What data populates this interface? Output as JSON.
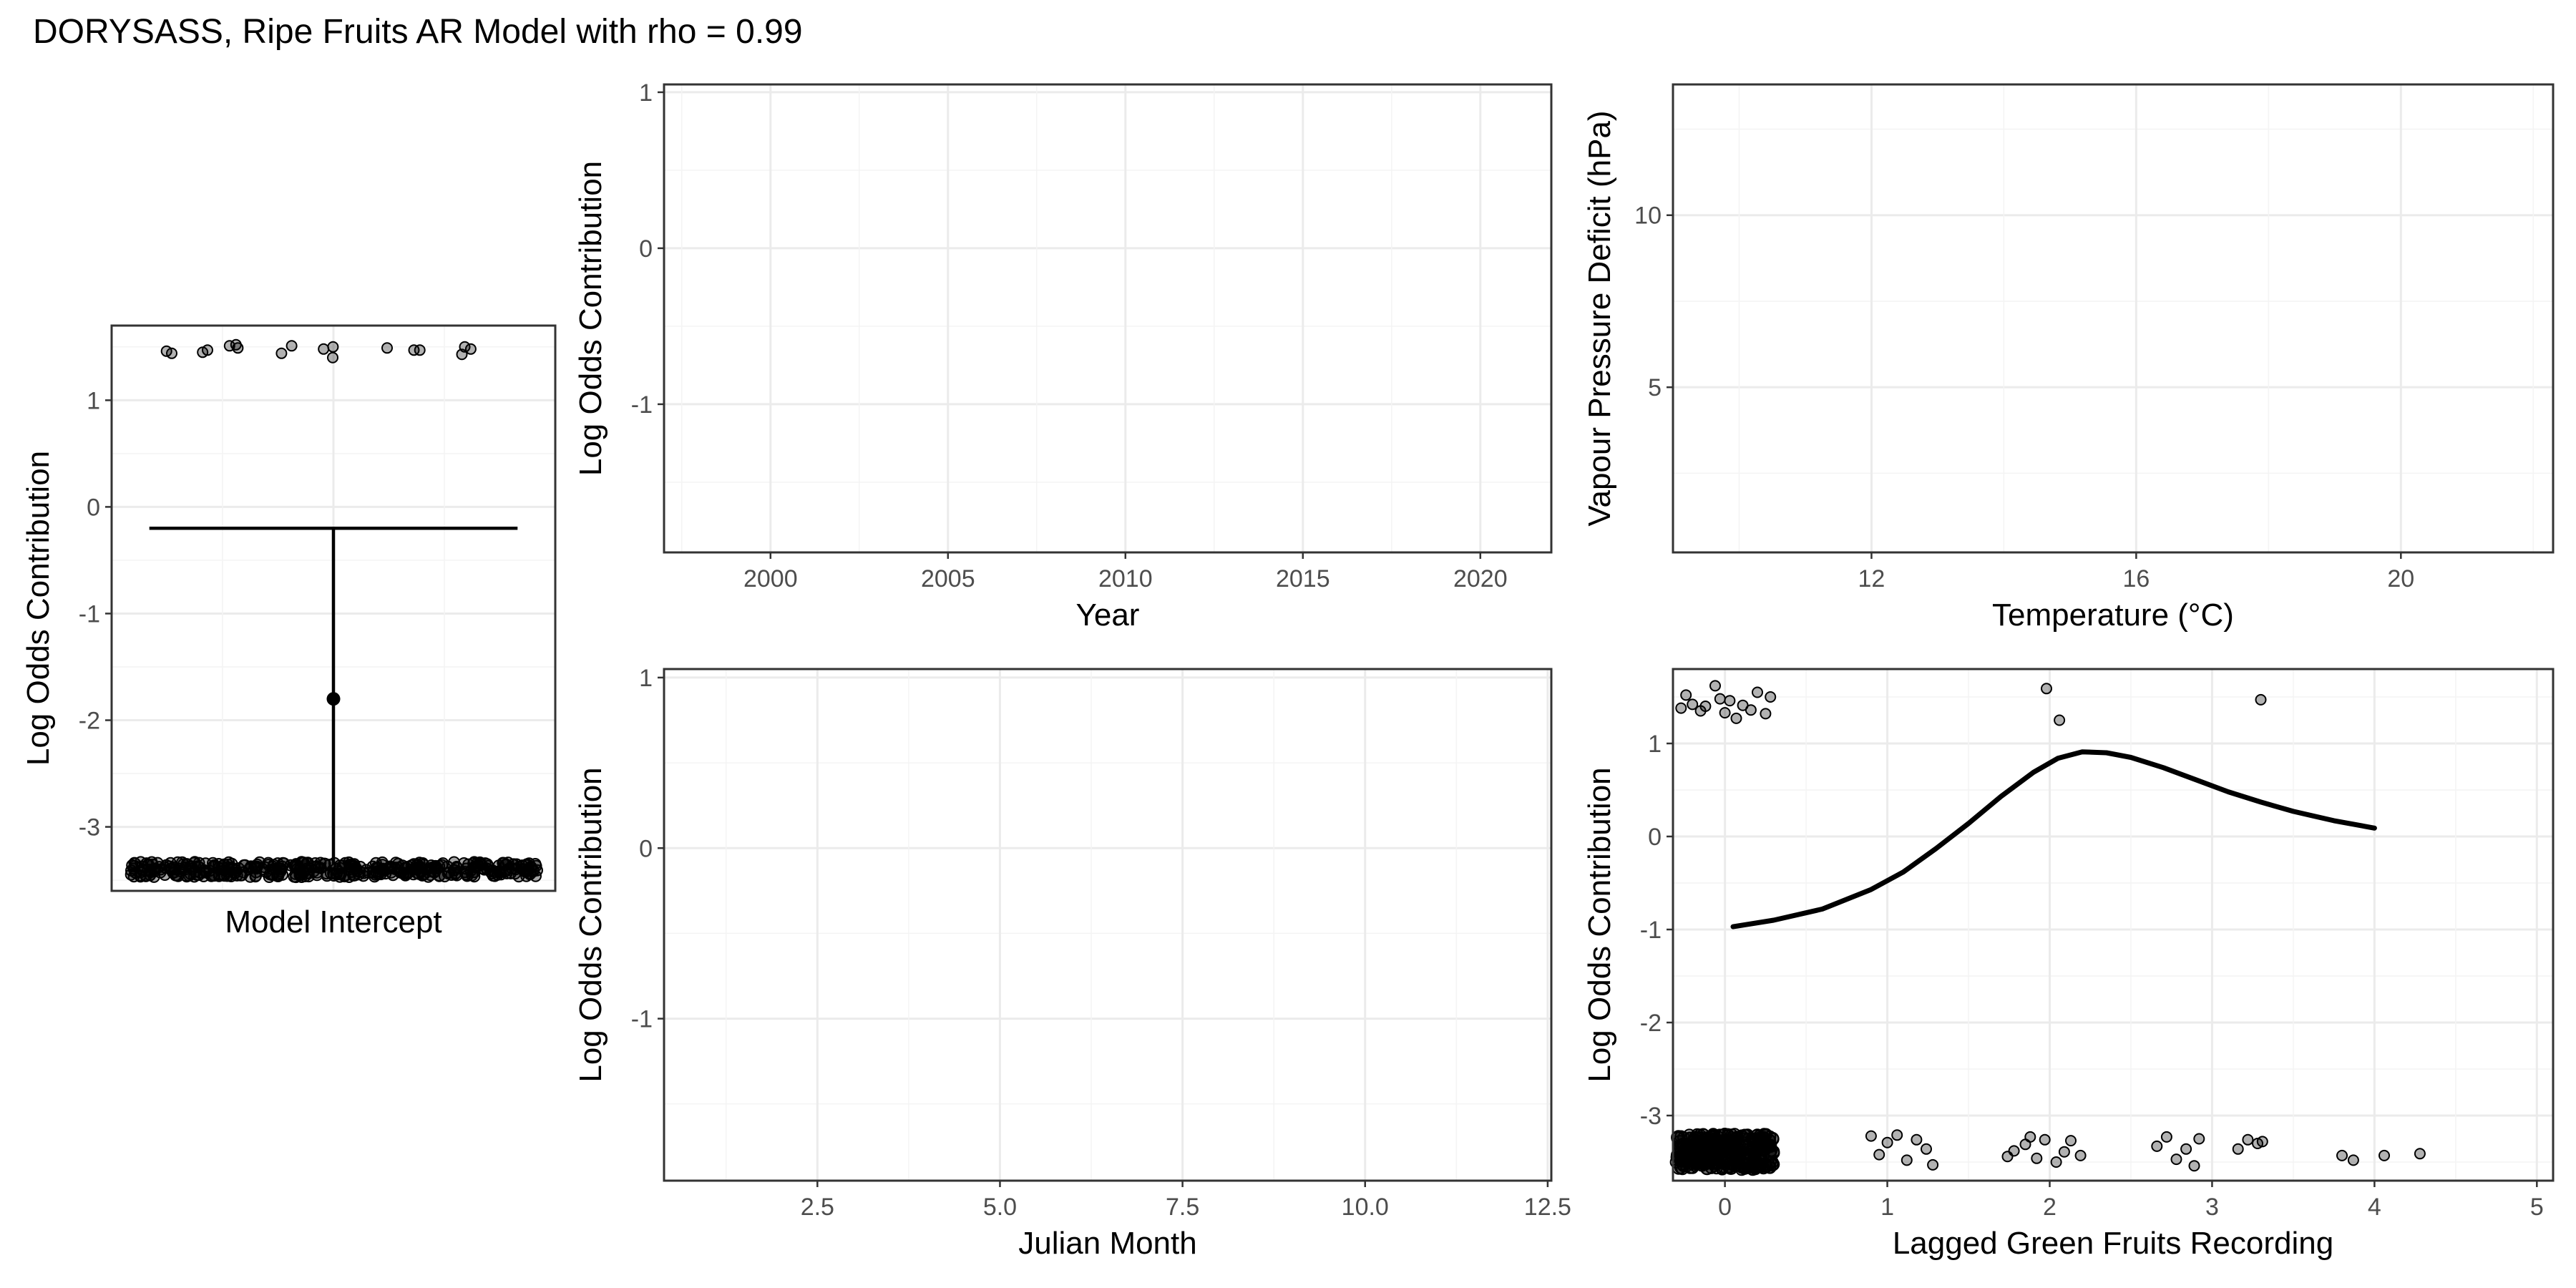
{
  "figure_title": "DORYSASS, Ripe Fruits AR Model with rho = 0.99",
  "colors": {
    "ink": "#000000",
    "grid": "#ebebeb",
    "border": "#333333",
    "tick_text": "#4d4d4d"
  },
  "chart_data": [
    {
      "id": "intercept",
      "type": "scatter",
      "xlabel": "Model Intercept",
      "ylabel": "Log Odds Contribution",
      "ylim": [
        -3.6,
        1.7
      ],
      "yticks": [
        1,
        0,
        -1,
        -2,
        -3
      ],
      "xticks": [],
      "grid": true,
      "estimate": {
        "y": -1.8,
        "lower": -3.35,
        "upper": -0.2,
        "cap_at": "upper"
      },
      "points_top_y": [
        1.52,
        1.47,
        1.49,
        1.5,
        1.47,
        1.44,
        1.5,
        1.51,
        1.46,
        1.48,
        1.44,
        1.47,
        1.4,
        1.49,
        1.45,
        1.43,
        1.48,
        1.51
      ],
      "points_bottom_band": [
        -3.47,
        -3.33
      ]
    },
    {
      "id": "year",
      "type": "line",
      "xlabel": "Year",
      "ylabel": "Log Odds Contribution",
      "xlim": [
        1997,
        2022
      ],
      "ylim": [
        -1.95,
        1.05
      ],
      "xticks": [
        2000,
        2005,
        2010,
        2015,
        2020
      ],
      "yticks": [
        1,
        0,
        -1
      ],
      "grid": true,
      "series": []
    },
    {
      "id": "temperature",
      "type": "line",
      "xlabel": "Temperature (°C)",
      "ylabel": "Vapour Pressure Deficit (hPa)",
      "xlim": [
        9,
        22.3
      ],
      "ylim": [
        0.2,
        13.8
      ],
      "xticks": [
        12,
        16,
        20
      ],
      "yticks": [
        10,
        5
      ],
      "grid": true,
      "series": []
    },
    {
      "id": "julian",
      "type": "line",
      "xlabel": "Julian Month",
      "ylabel": "Log Odds Contribution",
      "xlim": [
        0.4,
        12.55
      ],
      "ylim": [
        -1.95,
        1.05
      ],
      "xticks": [
        "2.5",
        "5.0",
        "7.5",
        "10.0",
        "12.5"
      ],
      "yticks": [
        1,
        0,
        -1
      ],
      "grid": true,
      "series": []
    },
    {
      "id": "lagged",
      "type": "scatter",
      "xlabel": "Lagged Green Fruits Recording",
      "ylabel": "Log Odds Contribution",
      "xlim": [
        -0.32,
        5.1
      ],
      "ylim": [
        -3.7,
        1.8
      ],
      "xticks": [
        0,
        1,
        2,
        3,
        4,
        5
      ],
      "yticks": [
        1,
        0,
        -1,
        -2,
        -3
      ],
      "grid": true,
      "curve": {
        "x": [
          0.05,
          0.3,
          0.6,
          0.9,
          1.1,
          1.3,
          1.5,
          1.7,
          1.9,
          2.05,
          2.2,
          2.35,
          2.5,
          2.7,
          2.9,
          3.1,
          3.3,
          3.5,
          3.75,
          4.0
        ],
        "y": [
          -0.97,
          -0.9,
          -0.78,
          -0.57,
          -0.38,
          -0.13,
          0.14,
          0.43,
          0.69,
          0.84,
          0.91,
          0.9,
          0.85,
          0.74,
          0.61,
          0.48,
          0.37,
          0.27,
          0.17,
          0.09
        ]
      },
      "points_top": [
        [
          -0.27,
          1.38
        ],
        [
          -0.24,
          1.52
        ],
        [
          -0.2,
          1.42
        ],
        [
          -0.15,
          1.35
        ],
        [
          -0.12,
          1.4
        ],
        [
          -0.06,
          1.62
        ],
        [
          -0.03,
          1.48
        ],
        [
          0.0,
          1.33
        ],
        [
          0.03,
          1.46
        ],
        [
          0.07,
          1.27
        ],
        [
          0.11,
          1.41
        ],
        [
          0.16,
          1.36
        ],
        [
          0.2,
          1.55
        ],
        [
          0.25,
          1.32
        ],
        [
          0.28,
          1.5
        ],
        [
          1.98,
          1.59
        ],
        [
          2.06,
          1.25
        ],
        [
          3.3,
          1.47
        ]
      ],
      "points_bottom": [
        [
          0.9,
          -3.22
        ],
        [
          0.95,
          -3.42
        ],
        [
          1.0,
          -3.29
        ],
        [
          1.06,
          -3.21
        ],
        [
          1.12,
          -3.48
        ],
        [
          1.18,
          -3.26
        ],
        [
          1.24,
          -3.36
        ],
        [
          1.28,
          -3.53
        ],
        [
          1.74,
          -3.44
        ],
        [
          1.78,
          -3.38
        ],
        [
          1.85,
          -3.31
        ],
        [
          1.88,
          -3.23
        ],
        [
          1.92,
          -3.46
        ],
        [
          1.97,
          -3.26
        ],
        [
          2.04,
          -3.5
        ],
        [
          2.09,
          -3.39
        ],
        [
          2.13,
          -3.27
        ],
        [
          2.19,
          -3.43
        ],
        [
          2.66,
          -3.33
        ],
        [
          2.72,
          -3.23
        ],
        [
          2.78,
          -3.47
        ],
        [
          2.84,
          -3.36
        ],
        [
          2.89,
          -3.54
        ],
        [
          2.92,
          -3.25
        ],
        [
          3.16,
          -3.36
        ],
        [
          3.22,
          -3.26
        ],
        [
          3.28,
          -3.3
        ],
        [
          3.31,
          -3.28
        ],
        [
          3.8,
          -3.43
        ],
        [
          3.87,
          -3.48
        ],
        [
          4.06,
          -3.43
        ],
        [
          4.28,
          -3.41
        ]
      ],
      "points_band": {
        "x_range": [
          -0.3,
          0.3
        ],
        "y_range": [
          -3.58,
          -3.2
        ]
      }
    }
  ]
}
